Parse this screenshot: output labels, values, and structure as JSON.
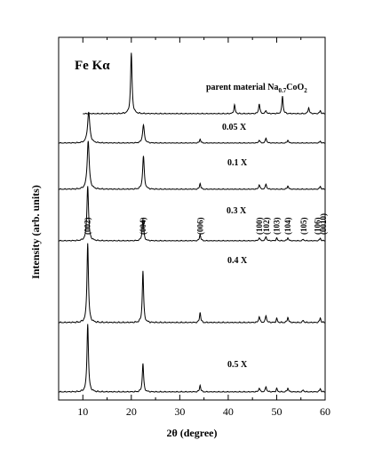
{
  "chart_data": {
    "type": "line",
    "title": "",
    "xlabel": "2θ (degree)",
    "ylabel": "Intensity (arb. units)",
    "xlim": [
      5,
      60
    ],
    "xticks": [
      10,
      20,
      30,
      40,
      50,
      60
    ],
    "grid": false,
    "legend": "none",
    "annotation": "Fe Kα",
    "series": [
      {
        "name": "parent material Na0.7CoO2",
        "label_main": "parent material Na",
        "label_sub": "0.7",
        "label_main2": "CoO",
        "label_sub2": "2",
        "x_start": 10,
        "peaks": [
          {
            "x": 20.0,
            "h": 0.95,
            "w": 0.18
          },
          {
            "x": 41.3,
            "h": 0.14,
            "w": 0.15
          },
          {
            "x": 46.4,
            "h": 0.16,
            "w": 0.15
          },
          {
            "x": 47.8,
            "h": 0.05,
            "w": 0.15
          },
          {
            "x": 51.2,
            "h": 0.28,
            "w": 0.15
          },
          {
            "x": 56.6,
            "h": 0.1,
            "w": 0.15
          },
          {
            "x": 59.0,
            "h": 0.05,
            "w": 0.15
          }
        ]
      },
      {
        "name": "0.05 X",
        "label_main": "0.05 X",
        "x_start": 5,
        "peaks": [
          {
            "x": 11.2,
            "h": 0.6,
            "w": 0.28
          },
          {
            "x": 22.5,
            "h": 0.35,
            "w": 0.22
          },
          {
            "x": 34.2,
            "h": 0.08,
            "w": 0.15
          },
          {
            "x": 46.4,
            "h": 0.06,
            "w": 0.15
          },
          {
            "x": 47.8,
            "h": 0.1,
            "w": 0.15
          },
          {
            "x": 52.3,
            "h": 0.06,
            "w": 0.15
          },
          {
            "x": 59.0,
            "h": 0.04,
            "w": 0.15
          }
        ]
      },
      {
        "name": "0.1 X",
        "label_main": "0.1 X",
        "x_start": 5,
        "peaks": [
          {
            "x": 11.1,
            "h": 0.8,
            "w": 0.25
          },
          {
            "x": 22.5,
            "h": 0.55,
            "w": 0.2
          },
          {
            "x": 34.2,
            "h": 0.1,
            "w": 0.15
          },
          {
            "x": 46.4,
            "h": 0.08,
            "w": 0.15
          },
          {
            "x": 47.8,
            "h": 0.09,
            "w": 0.15
          },
          {
            "x": 52.3,
            "h": 0.06,
            "w": 0.15
          },
          {
            "x": 59.0,
            "h": 0.05,
            "w": 0.15
          }
        ]
      },
      {
        "name": "0.3 X",
        "label_main": "0.3 X",
        "x_start": 5,
        "peaks": [
          {
            "x": 11.0,
            "h": 1.0,
            "w": 0.2
          },
          {
            "x": 22.4,
            "h": 0.4,
            "w": 0.18
          },
          {
            "x": 34.2,
            "h": 0.12,
            "w": 0.15
          },
          {
            "x": 46.4,
            "h": 0.06,
            "w": 0.15
          },
          {
            "x": 47.8,
            "h": 0.08,
            "w": 0.15
          },
          {
            "x": 50.0,
            "h": 0.05,
            "w": 0.15
          },
          {
            "x": 52.3,
            "h": 0.06,
            "w": 0.15
          },
          {
            "x": 55.5,
            "h": 0.03,
            "w": 0.15
          },
          {
            "x": 59.0,
            "h": 0.05,
            "w": 0.15
          }
        ]
      },
      {
        "name": "0.4 X",
        "label_main": "0.4 X",
        "x_start": 5,
        "peaks": [
          {
            "x": 11.0,
            "h": 1.0,
            "w": 0.18
          },
          {
            "x": 22.4,
            "h": 0.65,
            "w": 0.16
          },
          {
            "x": 34.2,
            "h": 0.13,
            "w": 0.15
          },
          {
            "x": 46.4,
            "h": 0.08,
            "w": 0.15
          },
          {
            "x": 47.8,
            "h": 0.09,
            "w": 0.15
          },
          {
            "x": 50.0,
            "h": 0.05,
            "w": 0.15
          },
          {
            "x": 52.3,
            "h": 0.07,
            "w": 0.15
          },
          {
            "x": 55.5,
            "h": 0.03,
            "w": 0.15
          },
          {
            "x": 59.0,
            "h": 0.06,
            "w": 0.15
          }
        ]
      },
      {
        "name": "0.5 X",
        "label_main": "0.5 X",
        "x_start": 5,
        "peaks": [
          {
            "x": 11.0,
            "h": 1.0,
            "w": 0.18
          },
          {
            "x": 22.4,
            "h": 0.42,
            "w": 0.16
          },
          {
            "x": 34.2,
            "h": 0.1,
            "w": 0.15
          },
          {
            "x": 46.4,
            "h": 0.06,
            "w": 0.15
          },
          {
            "x": 47.8,
            "h": 0.08,
            "w": 0.15
          },
          {
            "x": 50.0,
            "h": 0.05,
            "w": 0.15
          },
          {
            "x": 52.3,
            "h": 0.06,
            "w": 0.15
          },
          {
            "x": 55.5,
            "h": 0.03,
            "w": 0.15
          },
          {
            "x": 59.0,
            "h": 0.05,
            "w": 0.15
          }
        ]
      }
    ],
    "hkl_labels": [
      {
        "text": "(002)",
        "x": 11.0
      },
      {
        "text": "(004)",
        "x": 22.4
      },
      {
        "text": "(006)",
        "x": 34.2
      },
      {
        "text": "(100)",
        "x": 46.4
      },
      {
        "text": "(102)",
        "x": 47.9
      },
      {
        "text": "(103)",
        "x": 50.0
      },
      {
        "text": "(104)",
        "x": 52.3
      },
      {
        "text": "(105)",
        "x": 55.6
      },
      {
        "text": "(106)",
        "x": 58.4
      },
      {
        "text": "(0010)",
        "x": 59.6
      }
    ]
  }
}
